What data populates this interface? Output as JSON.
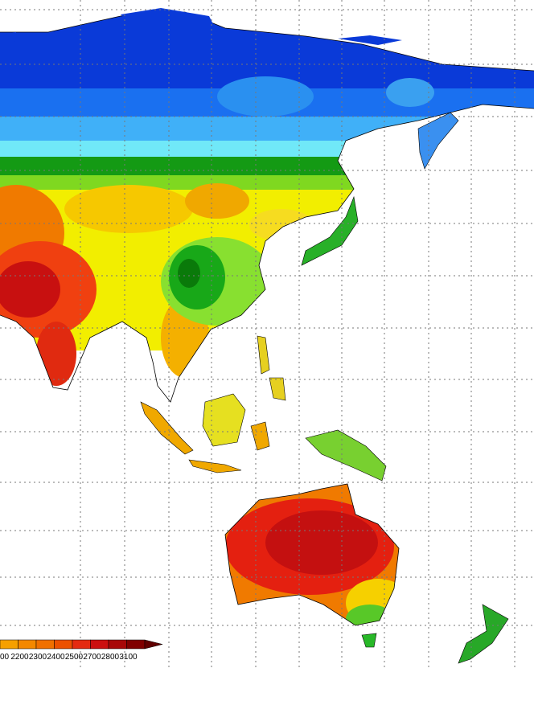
{
  "colorbar": {
    "labels": [
      "00",
      "2200",
      "2300",
      "2400",
      "2500",
      "2700",
      "2800",
      "3100"
    ]
  }
}
